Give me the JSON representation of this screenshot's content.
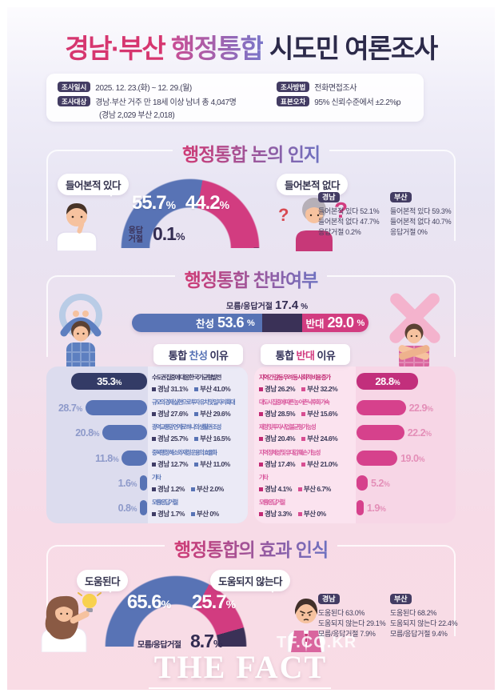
{
  "pct": "%",
  "title": {
    "part1": "경남·부산",
    "part2": " 행정통합",
    "part3": " 시도민 여론조사"
  },
  "meta": {
    "items": [
      {
        "label": "조사일시",
        "value": "2025. 12. 23.(화) ~ 12. 29.(월)"
      },
      {
        "label": "조사대상",
        "value": "경남·부산 거주 만 18세 이상 남녀 총 4,047명",
        "value2": "(경남 2,029 부산 2,018)"
      },
      {
        "label": "조사방법",
        "value": "전화면접조사"
      },
      {
        "label": "표본오차",
        "value": "95% 신뢰수준에서 ±2.2%p"
      }
    ]
  },
  "colors": {
    "blue": "#5873b5",
    "pink": "#d23c80",
    "navy": "#3a3157",
    "bar_blue_dark": "#333b66",
    "bar_pink_dark": "#c22f7c",
    "badge": "#433c63",
    "panel_blue": "#dcdcee",
    "panel_pink": "#f7d6e6",
    "title_pink": "#d6366f",
    "title_navy": "#2c2a4a"
  },
  "section1": {
    "title": "행정통합 논의 인지",
    "bubble_yes": "들어본적 있다",
    "bubble_no": "들어본적 없다",
    "yes": "55.7",
    "no": "44.2",
    "refuse_label": "응답거절",
    "refuse": "0.1",
    "regions": [
      {
        "name": "경남",
        "lines": [
          "들어본적 있다 52.1%",
          "들어본적 없다 47.7%",
          "응답거절 0.2%"
        ]
      },
      {
        "name": "부산",
        "lines": [
          "들어본적 있다 59.3%",
          "들어본적 없다 40.7%",
          "응답거절 0%"
        ]
      }
    ]
  },
  "section2": {
    "title": "행정통합 찬반여부",
    "unknown_label": "모름/응답거절",
    "unknown": "17.4",
    "agree_label": "찬성",
    "agree": "53.6",
    "oppose_label": "반대",
    "oppose": "29.0",
    "pro_header": {
      "pre": "통합",
      "mid": "찬성",
      "post": "이유"
    },
    "con_header": {
      "pre": "통합",
      "mid": "반대",
      "post": "이유"
    },
    "pro_reasons": [
      {
        "value": "35.3",
        "title": "수도권 집중에 대응한 국가균형발전",
        "gyeongnam": "경남 31.1%",
        "busan": "부산 41.0%"
      },
      {
        "value": "28.7",
        "title": "규모의 경제 실현으로 투자 유치 및 일자리 확대",
        "gyeongnam": "경남 27.6%",
        "busan": "부산 29.6%"
      },
      {
        "value": "20.8",
        "title": "광역교통망 연계로 하나의 생활권 조성",
        "gyeongnam": "경남 25.7%",
        "busan": "부산 16.5%"
      },
      {
        "value": "11.8",
        "title": "중복행정 해소와 재정 운용의 효율화",
        "gyeongnam": "경남 12.7%",
        "busan": "부산 11.0%"
      },
      {
        "value": "1.6",
        "title": "기타",
        "gyeongnam": "경남 1.2%",
        "busan": "부산 2.0%"
      },
      {
        "value": "0.8",
        "title": "모름/응답거절",
        "gyeongnam": "경남 1.7%",
        "busan": "부산 0%"
      }
    ],
    "con_reasons": [
      {
        "value": "28.8",
        "title": "지역 간 갈등 우려 등 사회적 비용 증가",
        "gyeongnam": "경남 26.2%",
        "busan": "부산 32.2%"
      },
      {
        "value": "22.9",
        "title": "대도시 집중에 따른 농·어촌 낙후화 가속",
        "gyeongnam": "경남 28.5%",
        "busan": "부산 15.6%"
      },
      {
        "value": "22.2",
        "title": "재정 및 투자사업 불균형 가능성",
        "gyeongnam": "경남 20.4%",
        "busan": "부산 24.6%"
      },
      {
        "value": "19.0",
        "title": "지역 정체성 및 유대감 훼손 가능성",
        "gyeongnam": "경남 17.4%",
        "busan": "부산 21.0%"
      },
      {
        "value": "5.2",
        "title": "기타",
        "gyeongnam": "경남 4.1%",
        "busan": "부산 6.7%"
      },
      {
        "value": "1.9",
        "title": "모름/응답거절",
        "gyeongnam": "경남 3.3%",
        "busan": "부산 0%"
      }
    ]
  },
  "section3": {
    "title": "행정통합의 효과 인식",
    "bubble_yes": "도움된다",
    "bubble_no": "도움되지 않는다",
    "yes": "65.6",
    "no": "25.7",
    "unknown_label": "모름/응답거절",
    "unknown": "8.7",
    "regions": [
      {
        "name": "경남",
        "lines": [
          "도움된다 63.0%",
          "도움되지 않는다 29.1%",
          "모름/응답거절 7.9%"
        ]
      },
      {
        "name": "부산",
        "lines": [
          "도움된다 68.2%",
          "도움되지 않는다 22.4%",
          "모름/응답거절 9.4%"
        ]
      }
    ]
  },
  "watermark": {
    "url": "TF.CO.KR",
    "brand": "THE FACT"
  },
  "chart_data": [
    {
      "type": "pie",
      "shape": "semi-donut",
      "title": "행정통합 논의 인지",
      "slices": [
        {
          "label": "들어본적 있다",
          "value": 55.7,
          "color": "#5873b5"
        },
        {
          "label": "들어본적 없다",
          "value": 44.2,
          "color": "#d23c80"
        },
        {
          "label": "응답거절",
          "value": 0.1,
          "color": "#3a3157"
        }
      ],
      "by_region": {
        "경남": {
          "들어본적 있다": 52.1,
          "들어본적 없다": 47.7,
          "응답거절": 0.2
        },
        "부산": {
          "들어본적 있다": 59.3,
          "들어본적 없다": 40.7,
          "응답거절": 0
        }
      }
    },
    {
      "type": "bar",
      "subtype": "stacked-horizontal-plus-reason-bars",
      "title": "행정통합 찬반여부",
      "segments": [
        {
          "label": "찬성",
          "value": 53.6,
          "color": "#5873b5"
        },
        {
          "label": "모름/응답거절",
          "value": 17.4,
          "color": "#3a3157"
        },
        {
          "label": "반대",
          "value": 29.0,
          "color": "#d23c80"
        }
      ],
      "pro_reasons": {
        "categories": [
          "수도권 집중에 대응한 국가균형발전",
          "규모의 경제 실현으로 투자 유치 및 일자리 확대",
          "광역교통망 연계로 하나의 생활권 조성",
          "중복행정 해소와 재정 운용의 효율화",
          "기타",
          "모름/응답거절"
        ],
        "total": [
          35.3,
          28.7,
          20.8,
          11.8,
          1.6,
          0.8
        ],
        "경남": [
          31.1,
          27.6,
          25.7,
          12.7,
          1.2,
          1.7
        ],
        "부산": [
          41.0,
          29.6,
          16.5,
          11.0,
          2.0,
          0
        ]
      },
      "con_reasons": {
        "categories": [
          "지역 간 갈등 우려 등 사회적 비용 증가",
          "대도시 집중에 따른 농·어촌 낙후화 가속",
          "재정 및 투자사업 불균형 가능성",
          "지역 정체성 및 유대감 훼손 가능성",
          "기타",
          "모름/응답거절"
        ],
        "total": [
          28.8,
          22.9,
          22.2,
          19.0,
          5.2,
          1.9
        ],
        "경남": [
          26.2,
          28.5,
          20.4,
          17.4,
          4.1,
          3.3
        ],
        "부산": [
          32.2,
          15.6,
          24.6,
          21.0,
          6.7,
          0
        ]
      }
    },
    {
      "type": "pie",
      "shape": "semi-donut",
      "title": "행정통합의 효과 인식",
      "slices": [
        {
          "label": "도움된다",
          "value": 65.6,
          "color": "#5873b5"
        },
        {
          "label": "도움되지 않는다",
          "value": 25.7,
          "color": "#d23c80"
        },
        {
          "label": "모름/응답거절",
          "value": 8.7,
          "color": "#3a3157"
        }
      ],
      "by_region": {
        "경남": {
          "도움된다": 63.0,
          "도움되지 않는다": 29.1,
          "모름/응답거절": 7.9
        },
        "부산": {
          "도움된다": 68.2,
          "도움되지 않는다": 22.4,
          "모름/응답거절": 9.4
        }
      }
    }
  ]
}
